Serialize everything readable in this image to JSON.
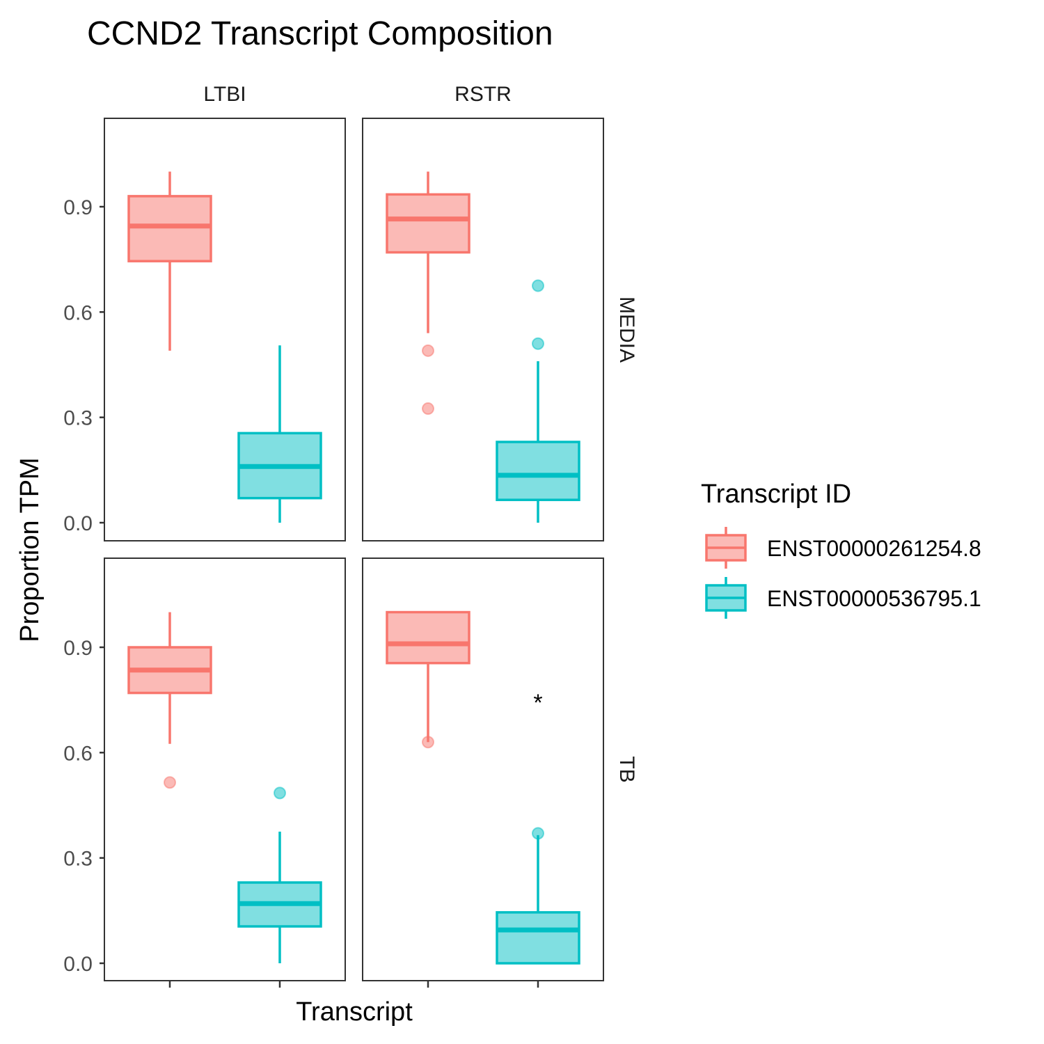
{
  "chart_data": {
    "type": "boxplot",
    "title": "CCND2 Transcript Composition",
    "xlabel": "Transcript",
    "ylabel": "Proportion TPM",
    "ylim": [
      0,
      1
    ],
    "yticks": [
      0.0,
      0.3,
      0.6,
      0.9
    ],
    "ytick_labels": [
      "0.0",
      "0.3",
      "0.6",
      "0.9"
    ],
    "facet_columns": [
      "LTBI",
      "RSTR"
    ],
    "facet_rows": [
      "MEDIA",
      "TB"
    ],
    "grid": false,
    "legend": {
      "title": "Transcript ID",
      "position": "right",
      "entries": [
        "ENST00000261254.8",
        "ENST00000536795.1"
      ]
    },
    "colors": {
      "ENST00000261254.8": {
        "line": "#f8766d",
        "fill": "#fbbab6"
      },
      "ENST00000536795.1": {
        "line": "#00bfc4",
        "fill": "#80dfe1"
      }
    },
    "panels": [
      {
        "column": "LTBI",
        "row": "MEDIA",
        "annotation": "",
        "boxes": [
          {
            "transcript": "ENST00000261254.8",
            "whisker_low": 0.49,
            "q1": 0.745,
            "median": 0.845,
            "q3": 0.93,
            "whisker_high": 1.0,
            "outliers": []
          },
          {
            "transcript": "ENST00000536795.1",
            "whisker_low": 0.0,
            "q1": 0.07,
            "median": 0.16,
            "q3": 0.255,
            "whisker_high": 0.505,
            "outliers": []
          }
        ]
      },
      {
        "column": "RSTR",
        "row": "MEDIA",
        "annotation": "",
        "boxes": [
          {
            "transcript": "ENST00000261254.8",
            "whisker_low": 0.54,
            "q1": 0.77,
            "median": 0.865,
            "q3": 0.935,
            "whisker_high": 1.0,
            "outliers": [
              0.49,
              0.325
            ]
          },
          {
            "transcript": "ENST00000536795.1",
            "whisker_low": 0.0,
            "q1": 0.065,
            "median": 0.135,
            "q3": 0.23,
            "whisker_high": 0.46,
            "outliers": [
              0.675,
              0.51
            ]
          }
        ]
      },
      {
        "column": "LTBI",
        "row": "TB",
        "annotation": "",
        "boxes": [
          {
            "transcript": "ENST00000261254.8",
            "whisker_low": 0.625,
            "q1": 0.77,
            "median": 0.835,
            "q3": 0.9,
            "whisker_high": 1.0,
            "outliers": [
              0.515
            ]
          },
          {
            "transcript": "ENST00000536795.1",
            "whisker_low": 0.0,
            "q1": 0.105,
            "median": 0.17,
            "q3": 0.23,
            "whisker_high": 0.375,
            "outliers": [
              0.485
            ]
          }
        ]
      },
      {
        "column": "RSTR",
        "row": "TB",
        "annotation": "*",
        "boxes": [
          {
            "transcript": "ENST00000261254.8",
            "whisker_low": 0.63,
            "q1": 0.855,
            "median": 0.91,
            "q3": 1.0,
            "whisker_high": 1.0,
            "outliers": [
              0.63
            ]
          },
          {
            "transcript": "ENST00000536795.1",
            "whisker_low": 0.0,
            "q1": 0.0,
            "median": 0.095,
            "q3": 0.145,
            "whisker_high": 0.365,
            "outliers": [
              0.37
            ]
          }
        ]
      }
    ]
  }
}
